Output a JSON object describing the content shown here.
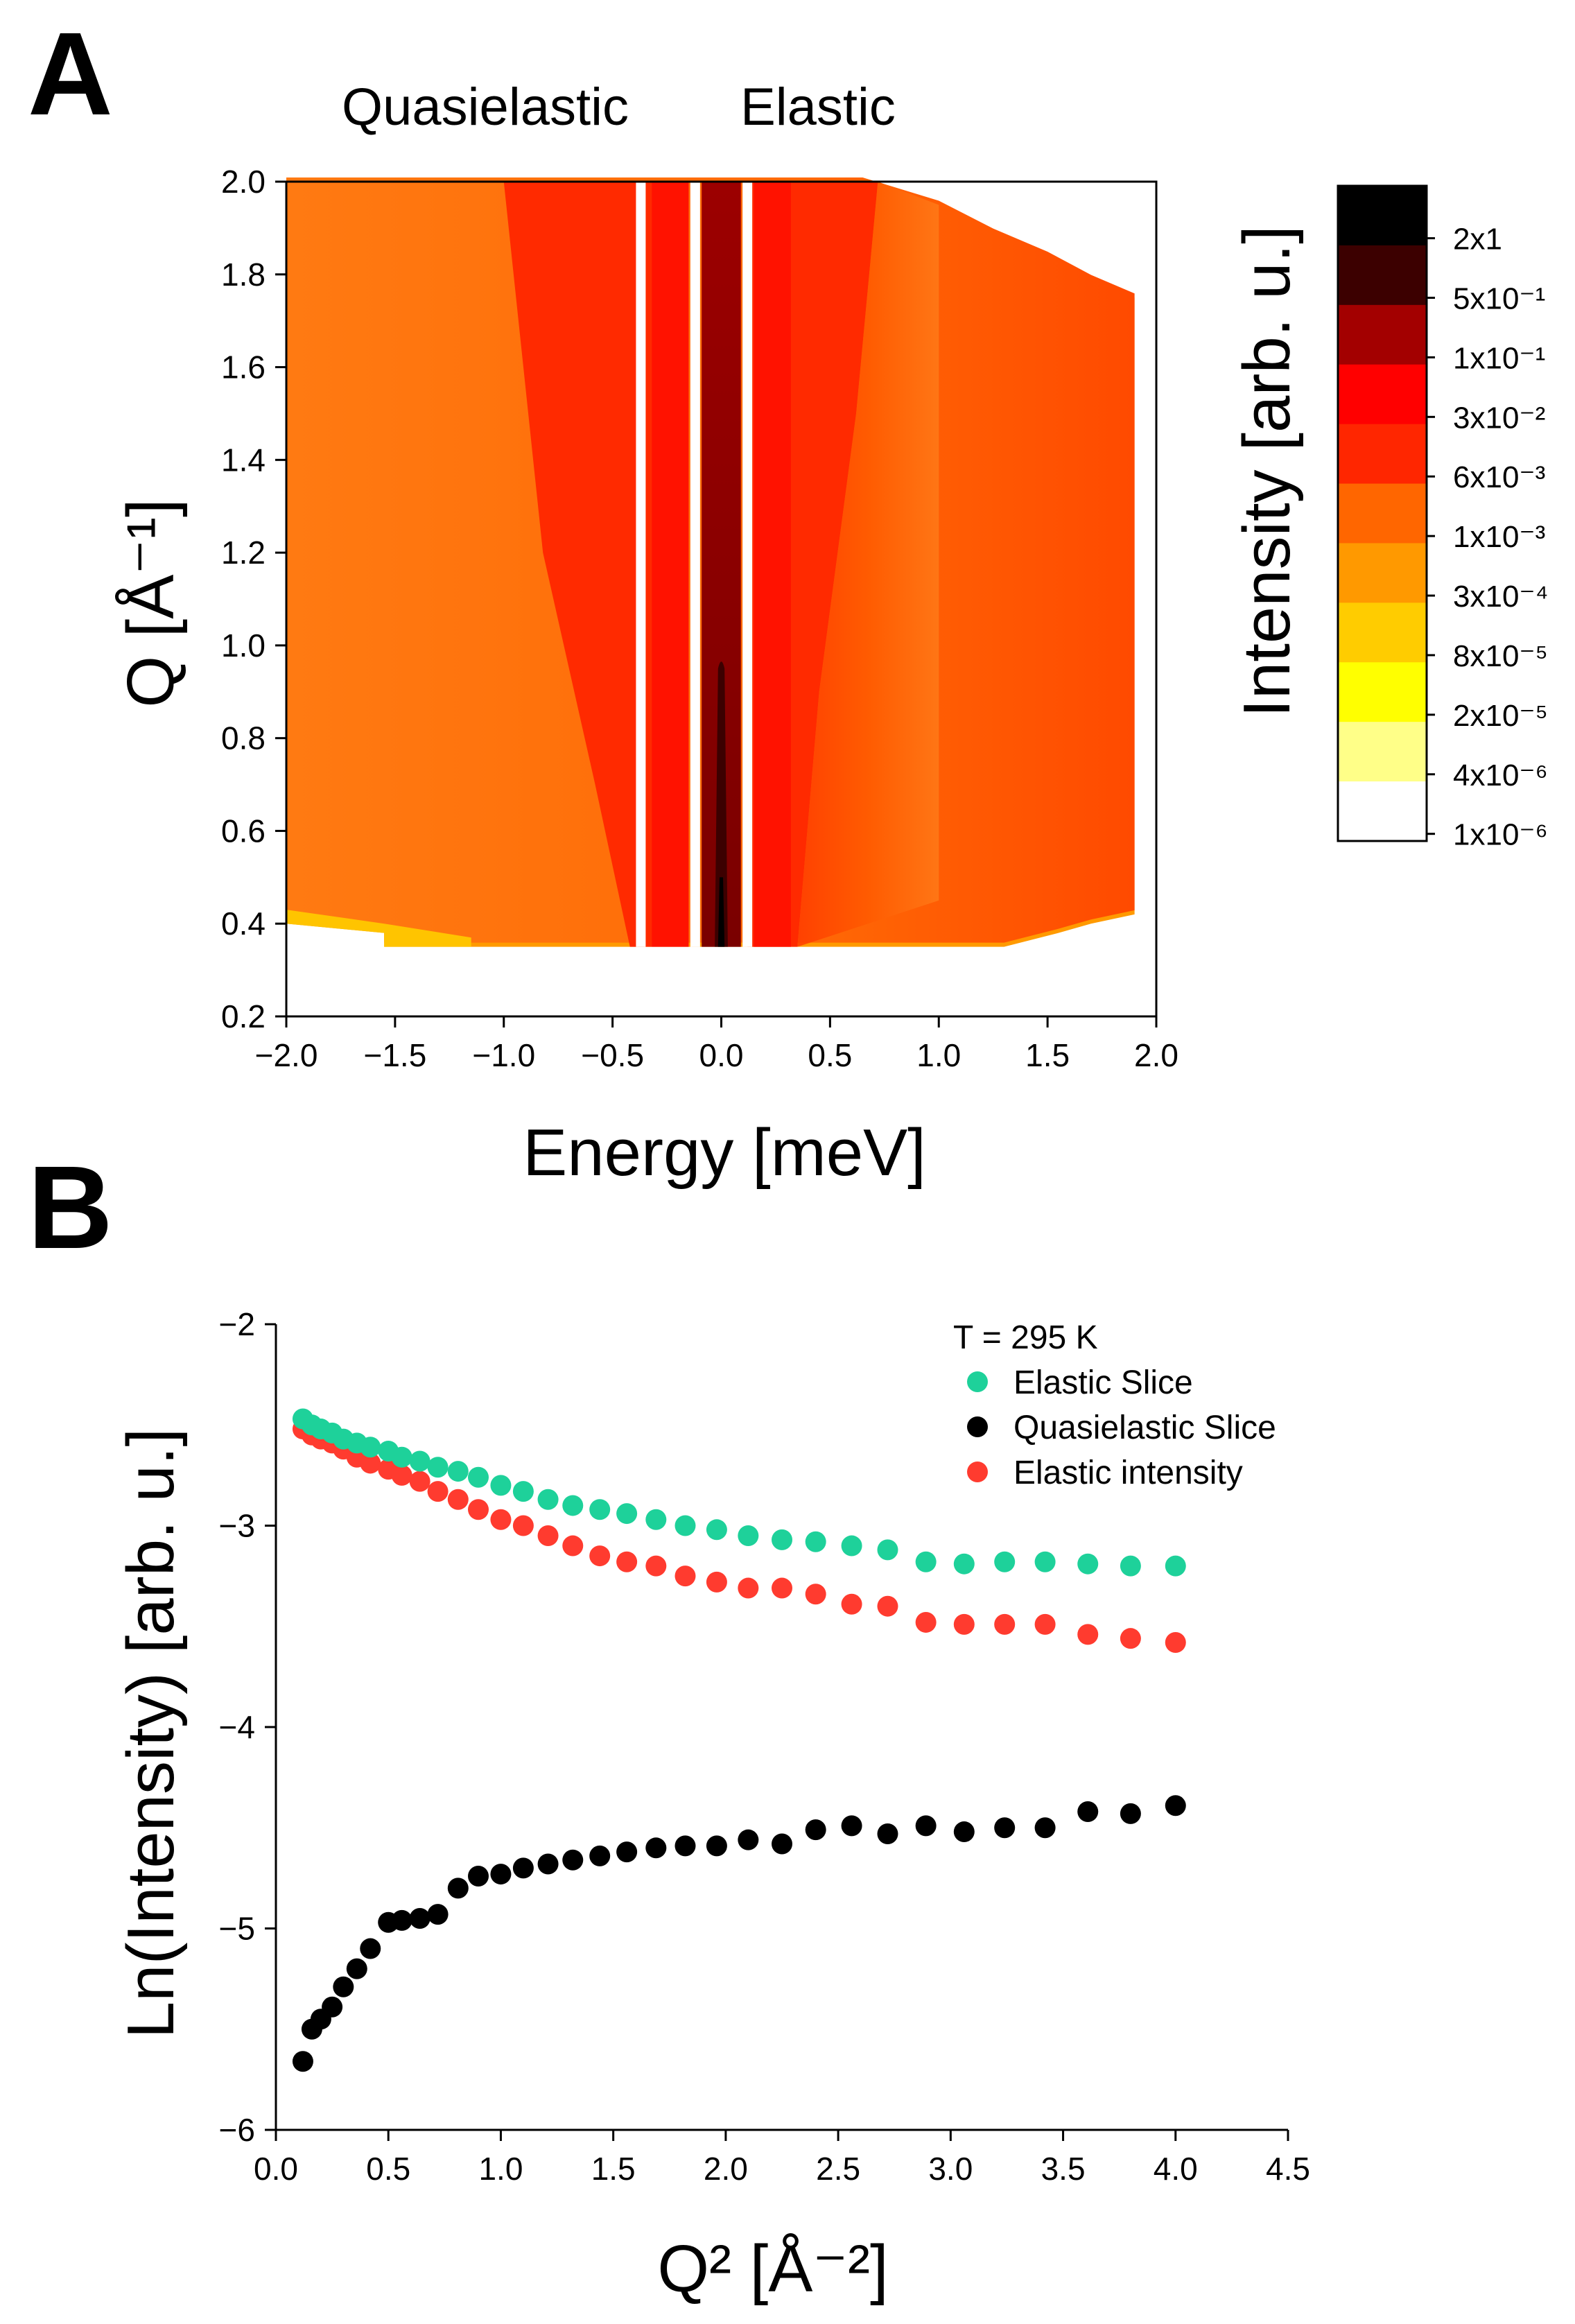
{
  "panels": {
    "a_label": "A",
    "b_label": "B"
  },
  "chart_data": [
    {
      "type": "heatmap",
      "panel": "A",
      "title": "",
      "header_left": "Quasielastic",
      "header_right": "Elastic",
      "xlabel": "Energy [meV]",
      "ylabel": "Q [Å⁻¹]",
      "xlim": [
        -2.0,
        2.0
      ],
      "ylim": [
        0.2,
        2.0
      ],
      "xticks": [
        "−2.0",
        "−1.5",
        "−1.0",
        "−0.5",
        "0.0",
        "0.5",
        "1.0",
        "1.5",
        "2.0"
      ],
      "xtick_values": [
        -2.0,
        -1.5,
        -1.0,
        -0.5,
        0.0,
        0.5,
        1.0,
        1.5,
        2.0
      ],
      "yticks": [
        "0.2",
        "0.4",
        "0.6",
        "0.8",
        "1.0",
        "1.2",
        "1.4",
        "1.6",
        "1.8",
        "2.0"
      ],
      "ytick_values": [
        0.2,
        0.4,
        0.6,
        0.8,
        1.0,
        1.2,
        1.4,
        1.6,
        1.8,
        2.0
      ],
      "colorbar": {
        "label": "Intensity [arb. u.]",
        "levels": [
          "2x1",
          "5x10⁻¹",
          "1x10⁻¹",
          "3x10⁻²",
          "6x10⁻³",
          "1x10⁻³",
          "3x10⁻⁴",
          "8x10⁻⁵",
          "2x10⁻⁵",
          "4x10⁻⁶",
          "1x10⁻⁶"
        ],
        "colors": [
          "#000000",
          "#3c0000",
          "#a30000",
          "#ff0000",
          "#ff2600",
          "#ff6600",
          "#ff9900",
          "#ffcc00",
          "#ffff00",
          "#ffff88",
          "#ffffff"
        ]
      },
      "regions": {
        "data_emin": -2.0,
        "data_emax": 1.9,
        "qmin": 0.35,
        "qmax": 2.0,
        "gap_centers_meV": [
          -0.37,
          -0.12,
          0.12
        ],
        "central_peak_qmax": 0.95
      }
    },
    {
      "type": "scatter",
      "panel": "B",
      "title": "",
      "xlabel": "Q² [Å⁻²]",
      "ylabel": "Ln(Intensity) [arb. u.]",
      "xlim": [
        0.0,
        4.5
      ],
      "ylim": [
        -6.0,
        -2.0
      ],
      "xticks": [
        "0.0",
        "0.5",
        "1.0",
        "1.5",
        "2.0",
        "2.5",
        "3.0",
        "3.5",
        "4.0",
        "4.5"
      ],
      "xtick_values": [
        0.0,
        0.5,
        1.0,
        1.5,
        2.0,
        2.5,
        3.0,
        3.5,
        4.0,
        4.5
      ],
      "yticks": [
        "−2",
        "−3",
        "−4",
        "−5",
        "−6"
      ],
      "ytick_values": [
        -2,
        -3,
        -4,
        -5,
        -6
      ],
      "legend_title": "T = 295 K",
      "legend_position": "top-right",
      "x": [
        0.12,
        0.16,
        0.2,
        0.25,
        0.3,
        0.36,
        0.42,
        0.5,
        0.56,
        0.64,
        0.72,
        0.81,
        0.9,
        1.0,
        1.1,
        1.21,
        1.32,
        1.44,
        1.56,
        1.69,
        1.82,
        1.96,
        2.1,
        2.25,
        2.4,
        2.56,
        2.72,
        2.89,
        3.06,
        3.24,
        3.42,
        3.61,
        3.8,
        4.0
      ],
      "series": [
        {
          "name": "Elastic Slice",
          "color": "#1ed19a",
          "values": [
            -2.47,
            -2.5,
            -2.52,
            -2.54,
            -2.57,
            -2.59,
            -2.61,
            -2.63,
            -2.66,
            -2.68,
            -2.71,
            -2.73,
            -2.76,
            -2.8,
            -2.83,
            -2.87,
            -2.9,
            -2.92,
            -2.94,
            -2.97,
            -3.0,
            -3.02,
            -3.05,
            -3.07,
            -3.08,
            -3.1,
            -3.12,
            -3.18,
            -3.19,
            -3.18,
            -3.18,
            -3.19,
            -3.2,
            -3.2
          ]
        },
        {
          "name": "Quasielastic Slice",
          "color": "#000000",
          "values": [
            -5.66,
            -5.5,
            -5.45,
            -5.39,
            -5.29,
            -5.2,
            -5.1,
            -4.97,
            -4.96,
            -4.95,
            -4.93,
            -4.8,
            -4.74,
            -4.73,
            -4.7,
            -4.68,
            -4.66,
            -4.64,
            -4.62,
            -4.6,
            -4.59,
            -4.59,
            -4.56,
            -4.58,
            -4.51,
            -4.49,
            -4.53,
            -4.49,
            -4.52,
            -4.5,
            -4.5,
            -4.42,
            -4.43,
            -4.39
          ]
        },
        {
          "name": "Elastic intensity",
          "color": "#ff3b2f",
          "values": [
            -2.52,
            -2.55,
            -2.57,
            -2.59,
            -2.62,
            -2.66,
            -2.69,
            -2.72,
            -2.75,
            -2.78,
            -2.83,
            -2.87,
            -2.92,
            -2.97,
            -3.0,
            -3.05,
            -3.1,
            -3.15,
            -3.18,
            -3.2,
            -3.25,
            -3.28,
            -3.31,
            -3.31,
            -3.34,
            -3.39,
            -3.4,
            -3.48,
            -3.49,
            -3.49,
            -3.49,
            -3.54,
            -3.56,
            -3.58
          ]
        }
      ]
    }
  ]
}
